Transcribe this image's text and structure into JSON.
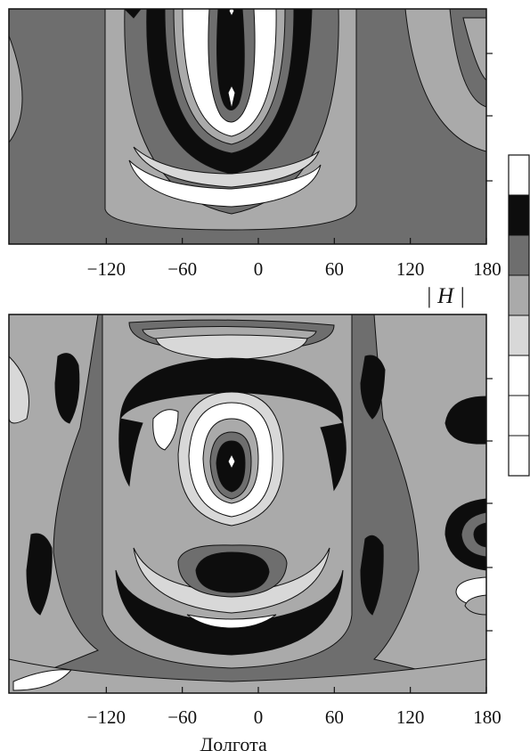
{
  "chart_data": [
    {
      "type": "heatmap",
      "subtype": "filled-contour",
      "panel": "upper",
      "xlim": [
        -180,
        180
      ],
      "xticks": [
        -120,
        -60,
        0,
        60,
        120,
        180
      ],
      "xtick_labels": [
        "−120",
        "−60",
        "0",
        "60",
        "120",
        "180"
      ],
      "grid": false,
      "color_levels": [
        "#ffffff",
        "#0d0d0d",
        "#6e6e6e",
        "#aaaaaa",
        "#d8d8d8"
      ]
    },
    {
      "type": "heatmap",
      "subtype": "filled-contour",
      "panel": "lower",
      "xlim": [
        -180,
        180
      ],
      "xticks": [
        -120,
        -60,
        0,
        60,
        120,
        180
      ],
      "xtick_labels": [
        "−120",
        "−60",
        "0",
        "60",
        "120",
        "180"
      ],
      "xlabel": "Долгота",
      "grid": false,
      "color_levels": [
        "#ffffff",
        "#0d0d0d",
        "#6e6e6e",
        "#aaaaaa",
        "#d8d8d8"
      ]
    }
  ],
  "colorbar": {
    "label": "| H |",
    "segments": [
      "#ffffff",
      "#0d0d0d",
      "#6e6e6e",
      "#aaaaaa",
      "#d8d8d8",
      "#ffffff",
      "#ffffff",
      "#ffffff"
    ]
  }
}
